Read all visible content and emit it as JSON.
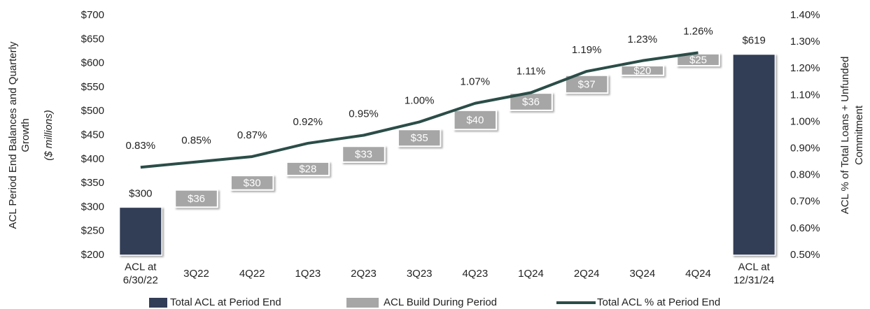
{
  "chart_data": {
    "type": "waterfall",
    "y_label": "ACL Period End Balances and Quarterly Growth",
    "y_label_unit": "($ millions)",
    "y2_label": "ACL % of Total Loans + Unfunded Commitment",
    "categories": [
      "ACL at 6/30/22",
      "3Q22",
      "4Q22",
      "1Q23",
      "2Q23",
      "3Q23",
      "4Q23",
      "1Q24",
      "2Q24",
      "3Q24",
      "4Q24",
      "ACL at 12/31/24"
    ],
    "series": [
      {
        "name": "Total ACL at Period End",
        "color": "#323d57",
        "kind": "total",
        "values": [
          300,
          null,
          null,
          null,
          null,
          null,
          null,
          null,
          null,
          null,
          null,
          619
        ],
        "value_labels": [
          "$300",
          null,
          null,
          null,
          null,
          null,
          null,
          null,
          null,
          null,
          null,
          "$619"
        ]
      },
      {
        "name": "ACL Build During Period",
        "color": "#a6a6a6",
        "kind": "build",
        "values": [
          null,
          36,
          30,
          28,
          33,
          35,
          40,
          36,
          37,
          20,
          25,
          null
        ],
        "value_labels": [
          null,
          "$36",
          "$30",
          "$28",
          "$33",
          "$35",
          "$40",
          "$36",
          "$37",
          "$20",
          "$25",
          null
        ]
      },
      {
        "name": "Total ACL % at Period End",
        "color": "#2b4d48",
        "kind": "line",
        "axis": "y2",
        "values": [
          0.83,
          0.85,
          0.87,
          0.92,
          0.95,
          1.0,
          1.07,
          1.11,
          1.19,
          1.23,
          1.26,
          null
        ],
        "value_labels": [
          "0.83%",
          "0.85%",
          "0.87%",
          "0.92%",
          "0.95%",
          "1.00%",
          "1.07%",
          "1.11%",
          "1.19%",
          "1.23%",
          "1.26%",
          null
        ]
      }
    ],
    "ylim": [
      200,
      700
    ],
    "yticks": [
      {
        "value": 200,
        "label": "$200"
      },
      {
        "value": 250,
        "label": "$250"
      },
      {
        "value": 300,
        "label": "$300"
      },
      {
        "value": 350,
        "label": "$350"
      },
      {
        "value": 400,
        "label": "$400"
      },
      {
        "value": 450,
        "label": "$450"
      },
      {
        "value": 500,
        "label": "$500"
      },
      {
        "value": 550,
        "label": "$550"
      },
      {
        "value": 600,
        "label": "$600"
      },
      {
        "value": 650,
        "label": "$650"
      },
      {
        "value": 700,
        "label": "$700"
      }
    ],
    "y2lim": [
      0.5,
      1.4
    ],
    "y2ticks": [
      {
        "value": 0.5,
        "label": "0.50%"
      },
      {
        "value": 0.6,
        "label": "0.60%"
      },
      {
        "value": 0.7,
        "label": "0.70%"
      },
      {
        "value": 0.8,
        "label": "0.80%"
      },
      {
        "value": 0.9,
        "label": "0.90%"
      },
      {
        "value": 1.0,
        "label": "1.00%"
      },
      {
        "value": 1.1,
        "label": "1.10%"
      },
      {
        "value": 1.2,
        "label": "1.20%"
      },
      {
        "value": 1.3,
        "label": "1.30%"
      },
      {
        "value": 1.4,
        "label": "1.40%"
      }
    ],
    "grid": false,
    "legend": "bottom"
  }
}
